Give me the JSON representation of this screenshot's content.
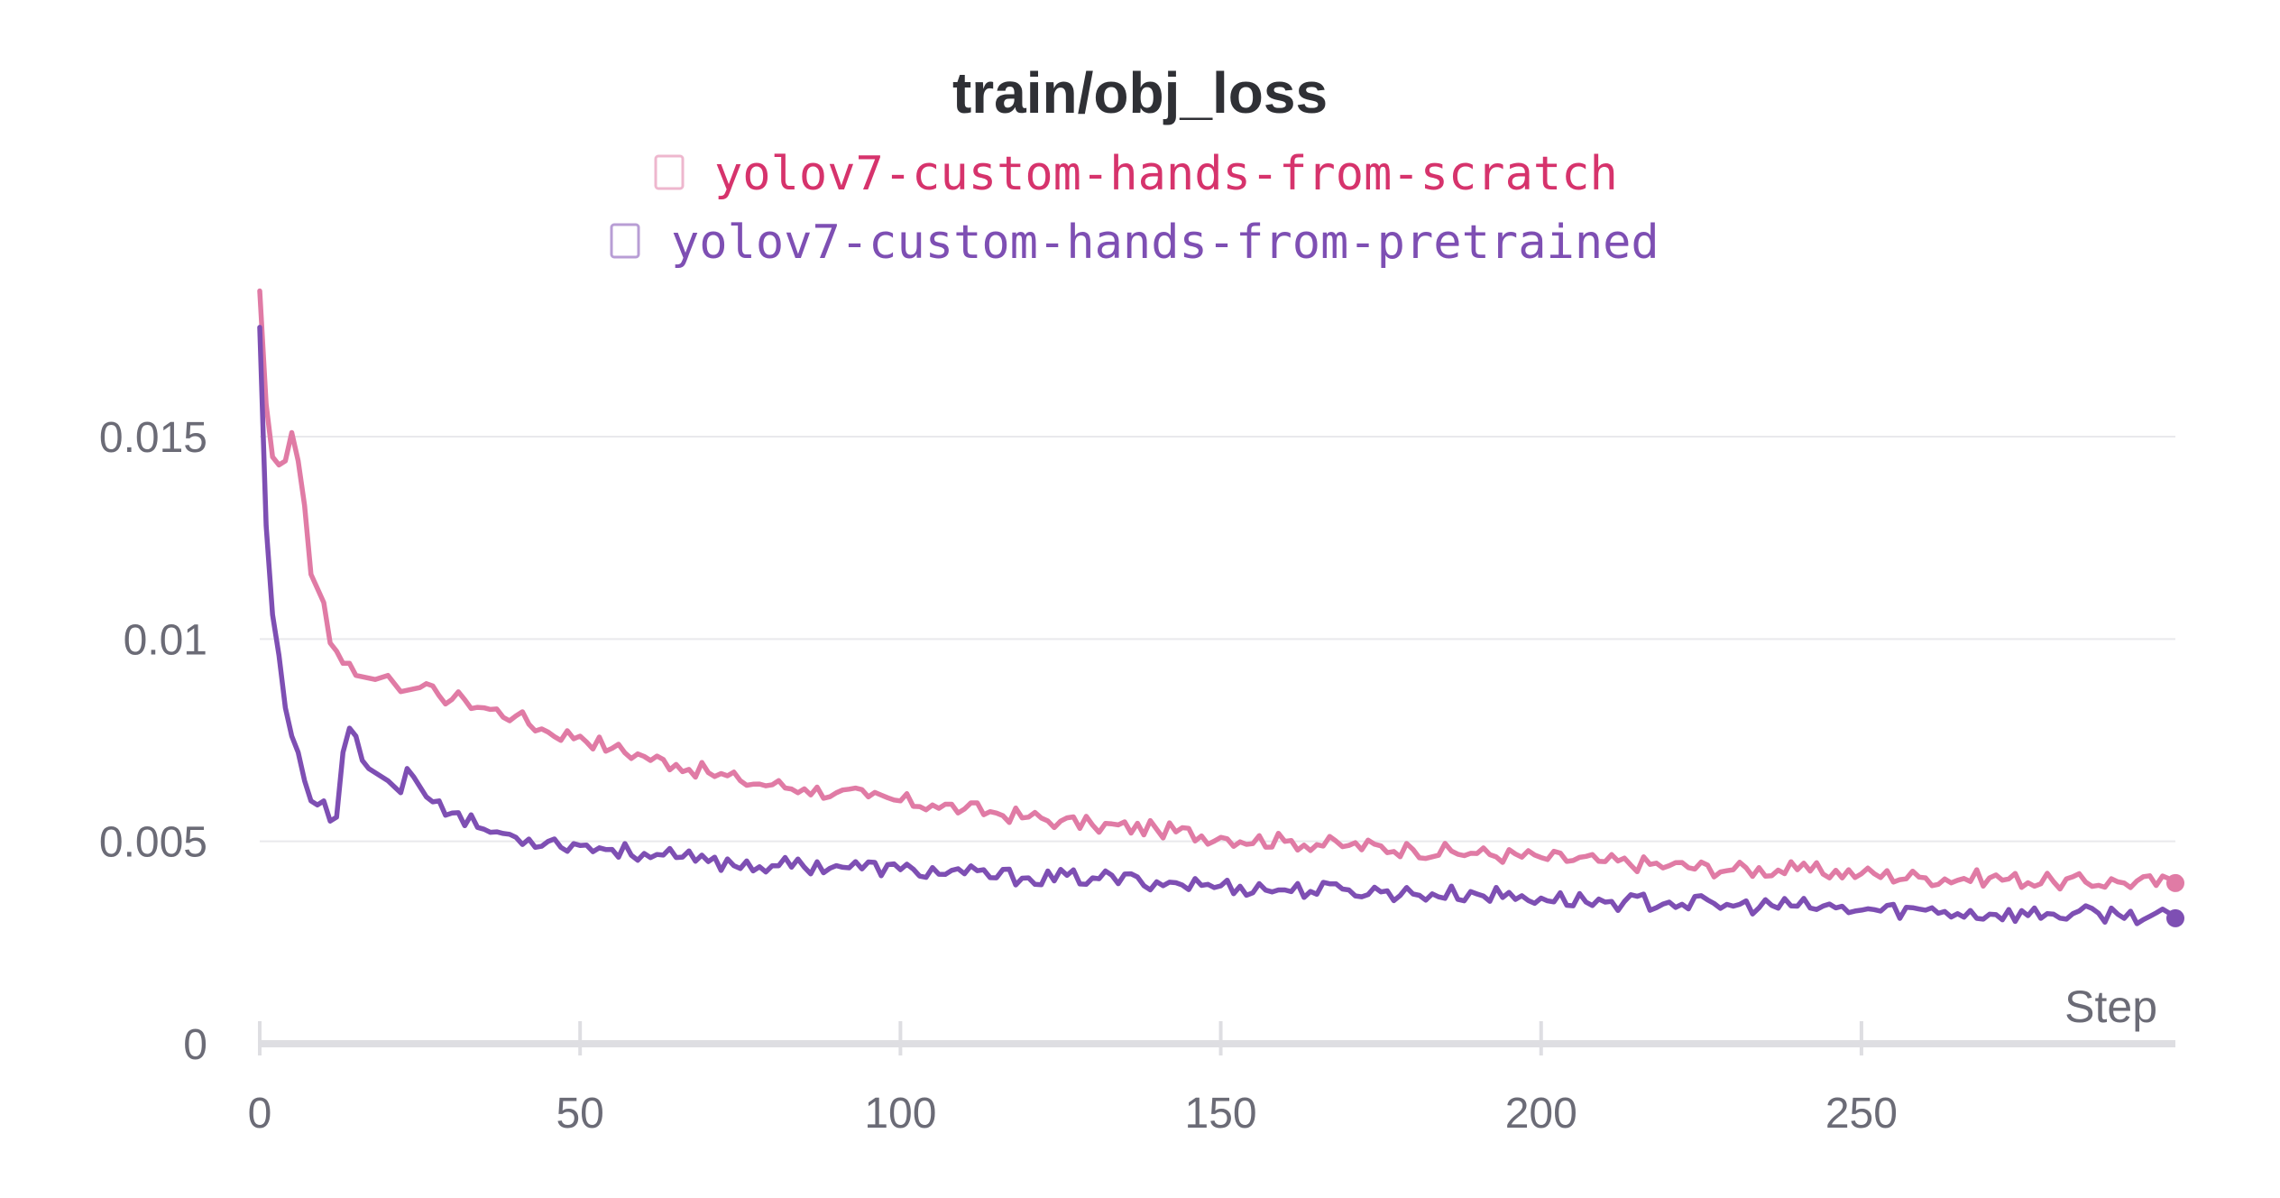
{
  "chart_data": {
    "type": "line",
    "title": "train/obj_loss",
    "xlabel": "Step",
    "ylabel": "",
    "xlim": [
      0,
      299
    ],
    "ylim": [
      0,
      0.0185
    ],
    "xticks": [
      0,
      50,
      100,
      150,
      200,
      250
    ],
    "xtick_labels": [
      "0",
      "50",
      "100",
      "150",
      "200",
      "250"
    ],
    "yticks": [
      0,
      0.005,
      0.01,
      0.015
    ],
    "ytick_labels": [
      "0",
      "0.005",
      "0.01",
      "0.015"
    ],
    "grid": true,
    "legend_position": "top",
    "series": [
      {
        "name": "yolov7-custom-hands-from-scratch",
        "color": "#e07ba5",
        "text_color": "#d6336c",
        "anchors": [
          [
            0,
            0.0186
          ],
          [
            1,
            0.0158
          ],
          [
            2,
            0.0145
          ],
          [
            3,
            0.0143
          ],
          [
            4,
            0.0144
          ],
          [
            5,
            0.0151
          ],
          [
            6,
            0.0144
          ],
          [
            7,
            0.0133
          ],
          [
            8,
            0.0116
          ],
          [
            10,
            0.0109
          ],
          [
            11,
            0.0099
          ],
          [
            12,
            0.0097
          ],
          [
            13,
            0.0094
          ],
          [
            14,
            0.0094
          ],
          [
            15,
            0.0091
          ],
          [
            18,
            0.009
          ],
          [
            20,
            0.0091
          ],
          [
            22,
            0.0087
          ],
          [
            25,
            0.0088
          ],
          [
            28,
            0.0086
          ],
          [
            32,
            0.0085
          ],
          [
            35,
            0.0083
          ],
          [
            40,
            0.0081
          ],
          [
            45,
            0.0077
          ],
          [
            50,
            0.0076
          ],
          [
            55,
            0.0073
          ],
          [
            60,
            0.0071
          ],
          [
            65,
            0.0069
          ],
          [
            70,
            0.0067
          ],
          [
            75,
            0.0065
          ],
          [
            80,
            0.0064
          ],
          [
            85,
            0.0063
          ],
          [
            90,
            0.0062
          ],
          [
            95,
            0.0061
          ],
          [
            100,
            0.006
          ],
          [
            105,
            0.0059
          ],
          [
            110,
            0.0058
          ],
          [
            115,
            0.0057
          ],
          [
            120,
            0.0056
          ],
          [
            125,
            0.0055
          ],
          [
            130,
            0.0054
          ],
          [
            140,
            0.0053
          ],
          [
            150,
            0.0051
          ],
          [
            160,
            0.005
          ],
          [
            170,
            0.0049
          ],
          [
            180,
            0.0048
          ],
          [
            190,
            0.0047
          ],
          [
            200,
            0.0046
          ],
          [
            210,
            0.0045
          ],
          [
            220,
            0.0044
          ],
          [
            230,
            0.0043
          ],
          [
            240,
            0.0043
          ],
          [
            250,
            0.0042
          ],
          [
            260,
            0.0041
          ],
          [
            270,
            0.0041
          ],
          [
            280,
            0.004
          ],
          [
            290,
            0.004
          ],
          [
            299,
            0.00397
          ]
        ]
      },
      {
        "name": "yolov7-custom-hands-from-pretrained",
        "color": "#7e4fb3",
        "text_color": "#7e4fb3",
        "anchors": [
          [
            0,
            0.0177
          ],
          [
            1,
            0.0128
          ],
          [
            2,
            0.0106
          ],
          [
            3,
            0.0096
          ],
          [
            4,
            0.0083
          ],
          [
            5,
            0.0076
          ],
          [
            6,
            0.0072
          ],
          [
            7,
            0.0065
          ],
          [
            8,
            0.006
          ],
          [
            9,
            0.0059
          ],
          [
            10,
            0.006
          ],
          [
            11,
            0.0055
          ],
          [
            12,
            0.0056
          ],
          [
            13,
            0.0072
          ],
          [
            14,
            0.0078
          ],
          [
            15,
            0.0076
          ],
          [
            16,
            0.007
          ],
          [
            17,
            0.0068
          ],
          [
            18,
            0.0067
          ],
          [
            20,
            0.0065
          ],
          [
            22,
            0.0062
          ],
          [
            23,
            0.0068
          ],
          [
            24,
            0.0066
          ],
          [
            26,
            0.0061
          ],
          [
            28,
            0.006
          ],
          [
            30,
            0.0057
          ],
          [
            35,
            0.0053
          ],
          [
            40,
            0.0051
          ],
          [
            45,
            0.005
          ],
          [
            50,
            0.0049
          ],
          [
            55,
            0.0048
          ],
          [
            60,
            0.0047
          ],
          [
            65,
            0.0046
          ],
          [
            70,
            0.0045
          ],
          [
            80,
            0.0044
          ],
          [
            90,
            0.0044
          ],
          [
            100,
            0.0043
          ],
          [
            110,
            0.0042
          ],
          [
            120,
            0.0041
          ],
          [
            130,
            0.0041
          ],
          [
            140,
            0.004
          ],
          [
            150,
            0.0039
          ],
          [
            160,
            0.0038
          ],
          [
            170,
            0.0038
          ],
          [
            180,
            0.0037
          ],
          [
            190,
            0.0037
          ],
          [
            200,
            0.0036
          ],
          [
            210,
            0.0035
          ],
          [
            220,
            0.0035
          ],
          [
            230,
            0.0034
          ],
          [
            240,
            0.0034
          ],
          [
            250,
            0.0033
          ],
          [
            260,
            0.0033
          ],
          [
            270,
            0.0032
          ],
          [
            280,
            0.0032
          ],
          [
            290,
            0.0032
          ],
          [
            299,
            0.0031
          ]
        ]
      }
    ]
  }
}
